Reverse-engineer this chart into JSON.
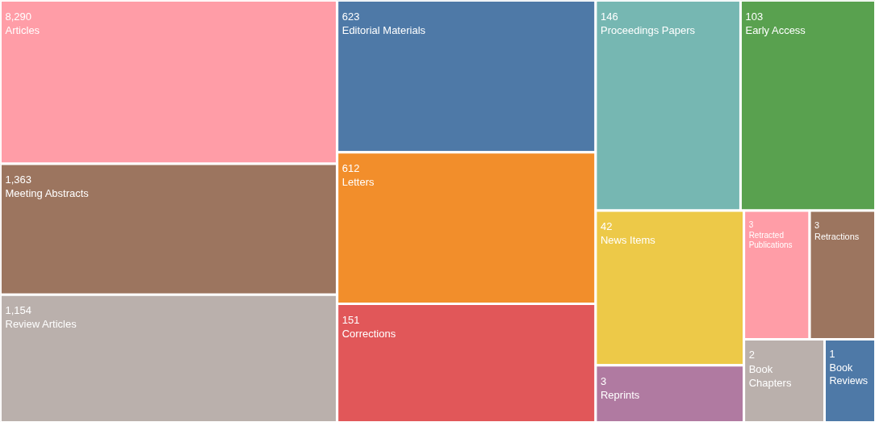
{
  "chart_data": {
    "type": "other",
    "categories": [
      "Articles",
      "Meeting Abstracts",
      "Review Articles",
      "Editorial Materials",
      "Letters",
      "Corrections",
      "Proceedings Papers",
      "Early Access",
      "News Items",
      "Reprints",
      "Retracted Publications",
      "Retractions",
      "Book Chapters",
      "Book Reviews"
    ],
    "values": [
      8290,
      1363,
      1154,
      623,
      612,
      151,
      146,
      103,
      42,
      3,
      3,
      3,
      2,
      1
    ],
    "value_labels": [
      "8,290",
      "1,363",
      "1,154",
      "623",
      "612",
      "151",
      "146",
      "103",
      "42",
      "3",
      "3",
      "3",
      "2",
      "1"
    ],
    "colors": [
      "#ff9da7",
      "#9c755f",
      "#bab0ac",
      "#4e79a7",
      "#f28e2b",
      "#e15759",
      "#76b7b2",
      "#59a14f",
      "#edc948",
      "#b07aa1",
      "#ff9da7",
      "#9c755f",
      "#bab0ac",
      "#4e79a7"
    ]
  }
}
